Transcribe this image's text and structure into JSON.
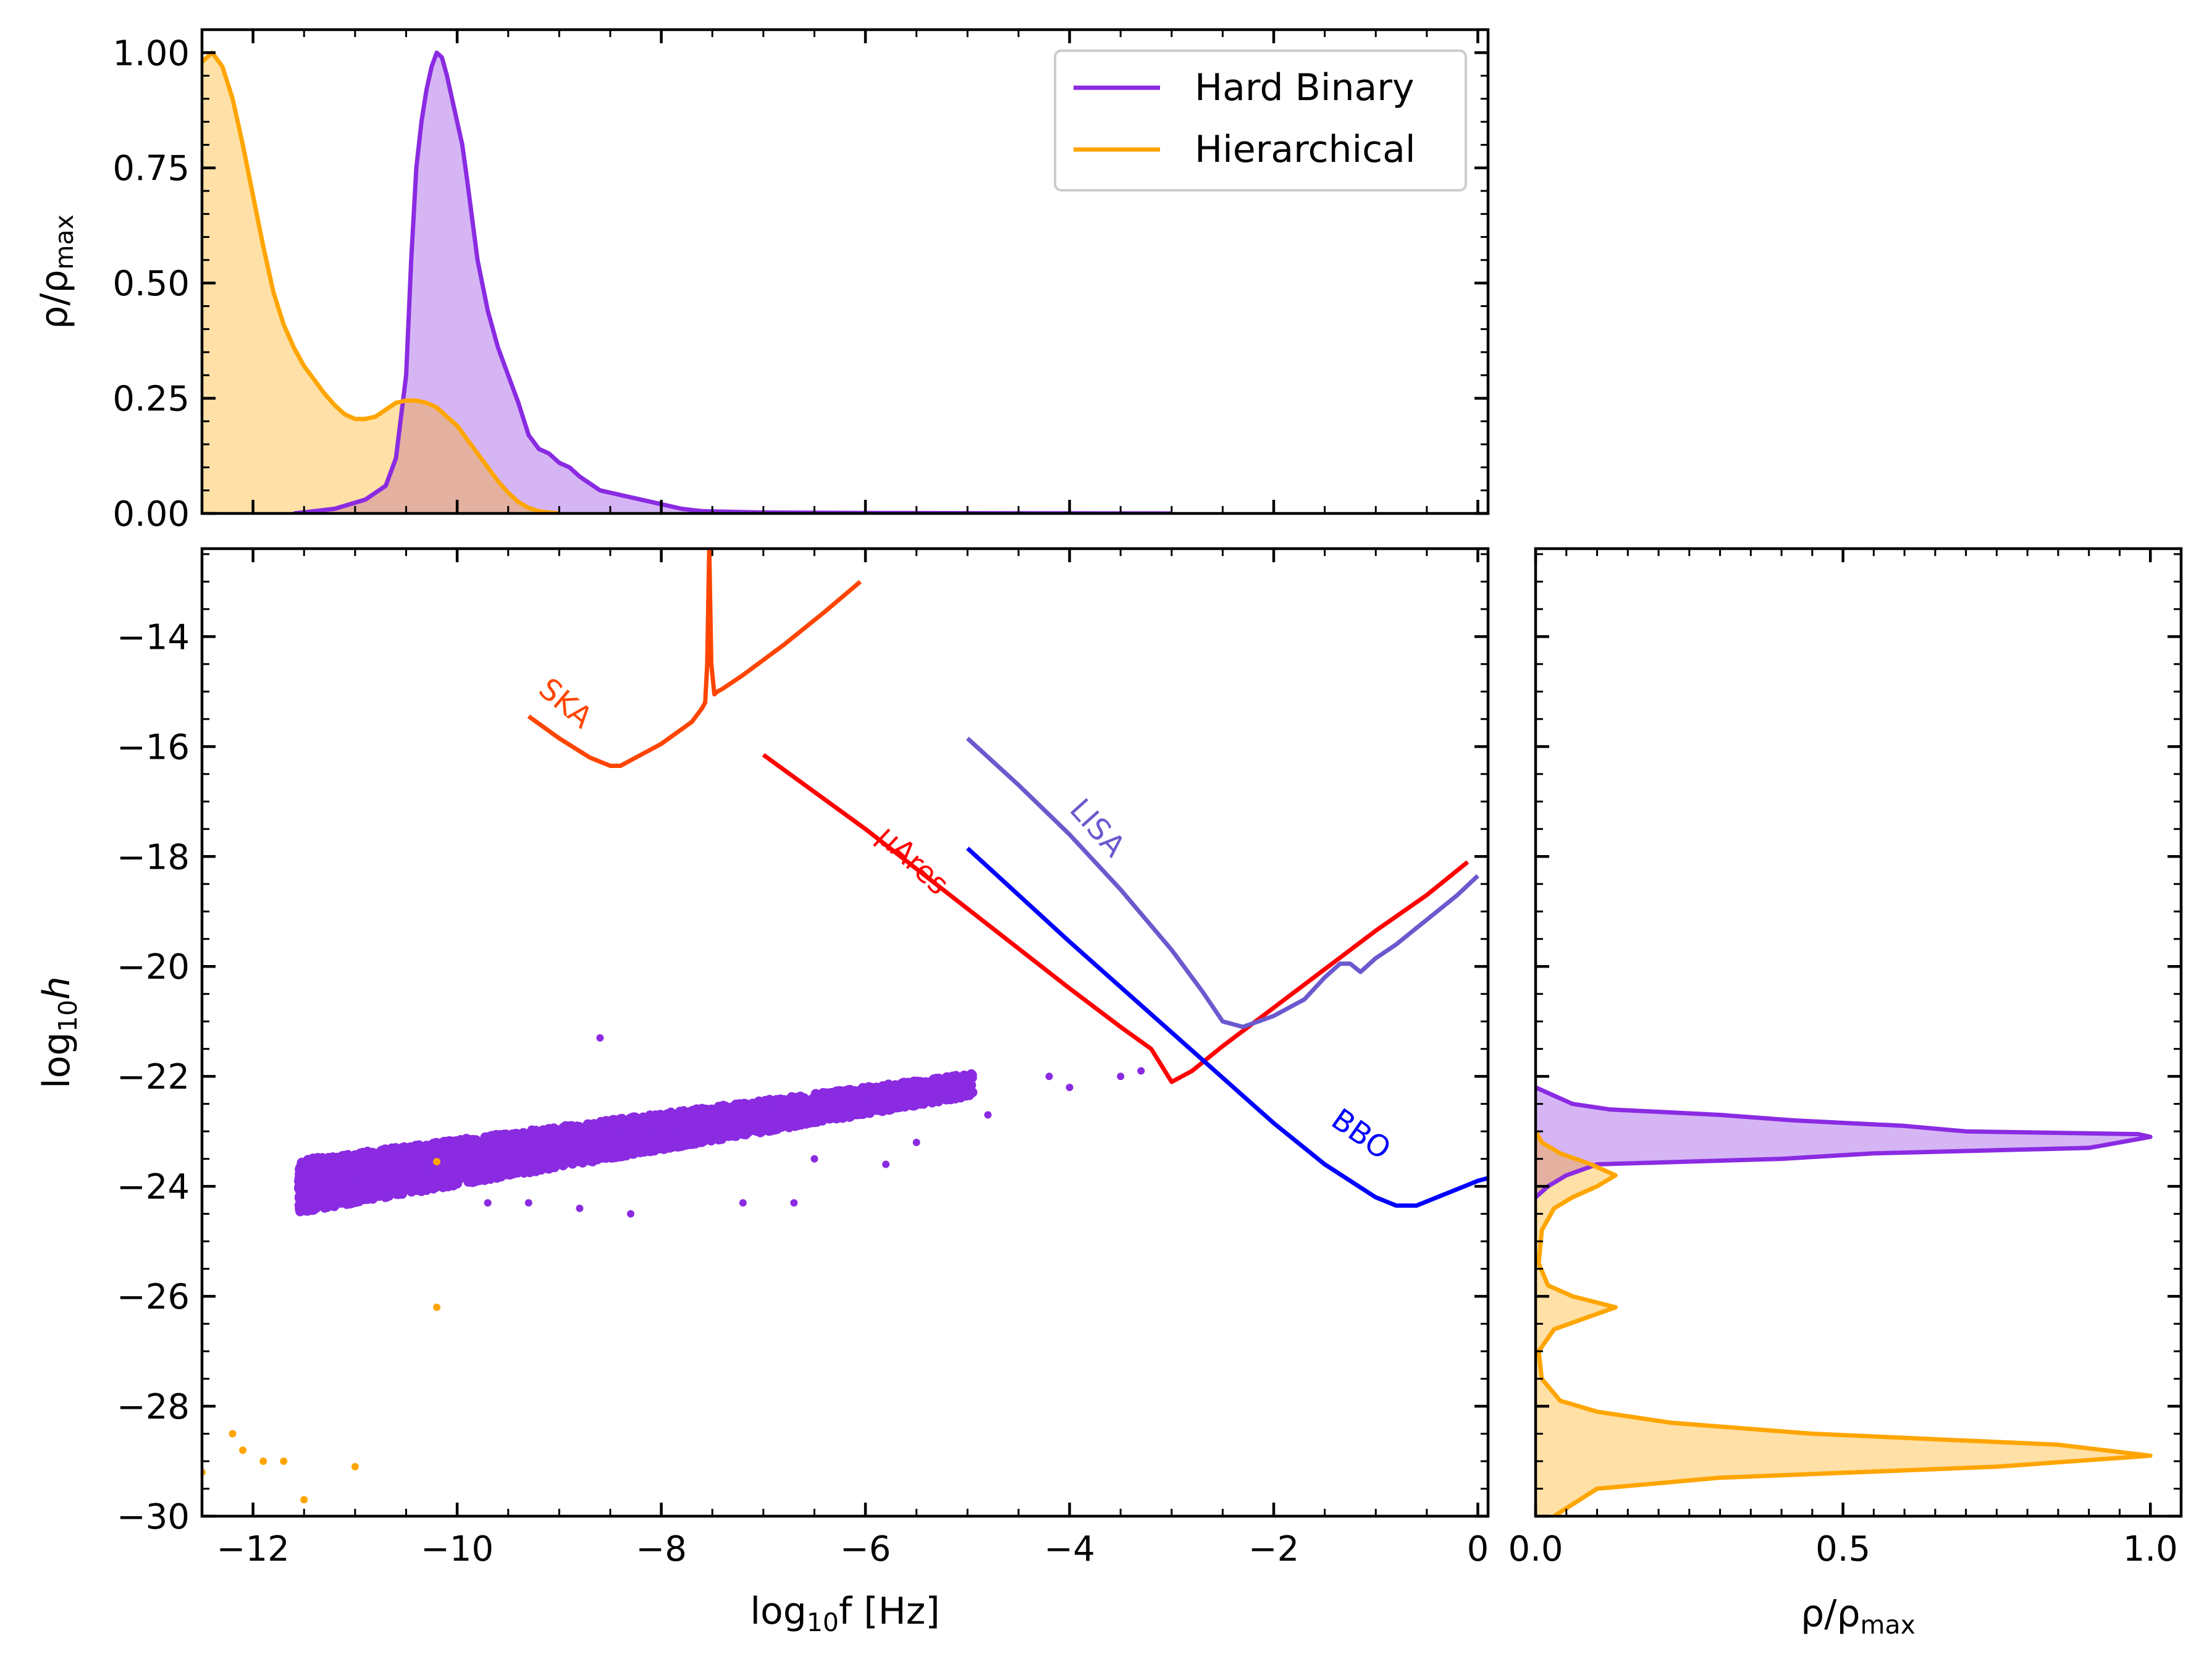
{
  "figure": {
    "top_panel": {
      "ylabel": {
        "main": "ρ/ρ",
        "sub": "max"
      },
      "yticks": [
        "0.00",
        "0.25",
        "0.50",
        "0.75",
        "1.00"
      ]
    },
    "main_panel": {
      "xlabel": {
        "pre": "log",
        "sub": "10",
        "post": "f [Hz]"
      },
      "ylabel": {
        "pre": "log",
        "sub": "10",
        "post": "h"
      },
      "xticks": [
        "−12",
        "−10",
        "−8",
        "−6",
        "−4",
        "−2",
        "0"
      ],
      "yticks": [
        "−14",
        "−16",
        "−18",
        "−20",
        "−22",
        "−24",
        "−26",
        "−28",
        "−30"
      ]
    },
    "right_panel": {
      "xlabel": {
        "main": "ρ/ρ",
        "sub": "max"
      },
      "xticks": [
        "0.0",
        "0.5",
        "1.0"
      ]
    },
    "legend": {
      "position": "upper right of top panel",
      "entries": [
        {
          "label": "Hard Binary",
          "color": "#8a2be2"
        },
        {
          "label": "Hierarchical",
          "color": "#ffa500"
        }
      ]
    },
    "detectors": [
      {
        "name": "SKA",
        "color": "#ff4500"
      },
      {
        "name": "μAres",
        "color": "#ff0000"
      },
      {
        "name": "LISA",
        "color": "#6a5acd"
      },
      {
        "name": "BBO",
        "color": "#0000ff"
      }
    ]
  },
  "chart_data": [
    {
      "type": "area",
      "panel": "top marginal",
      "xlim": [
        -12.5,
        0.1
      ],
      "ylim": [
        0,
        1.05
      ],
      "series": [
        {
          "name": "Hard Binary",
          "color": "#8a2be2",
          "x": [
            -11.6,
            -11.2,
            -10.9,
            -10.7,
            -10.6,
            -10.5,
            -10.45,
            -10.4,
            -10.35,
            -10.3,
            -10.25,
            -10.2,
            -10.15,
            -10.1,
            -10.05,
            -10.0,
            -9.95,
            -9.9,
            -9.8,
            -9.7,
            -9.6,
            -9.5,
            -9.4,
            -9.3,
            -9.2,
            -9.1,
            -9.0,
            -8.9,
            -8.8,
            -8.6,
            -8.4,
            -8.2,
            -8.0,
            -7.8,
            -7.6,
            -7.0,
            -6.0,
            -5.0,
            -3.0
          ],
          "y": [
            0,
            0.01,
            0.03,
            0.06,
            0.12,
            0.3,
            0.55,
            0.75,
            0.85,
            0.92,
            0.97,
            1.0,
            0.99,
            0.95,
            0.9,
            0.85,
            0.8,
            0.72,
            0.55,
            0.44,
            0.36,
            0.3,
            0.24,
            0.17,
            0.14,
            0.13,
            0.11,
            0.1,
            0.08,
            0.05,
            0.04,
            0.03,
            0.02,
            0.01,
            0.005,
            0.002,
            0.001,
            0.0005,
            0
          ]
        },
        {
          "name": "Hierarchical",
          "color": "#ffa500",
          "x": [
            -12.5,
            -12.4,
            -12.3,
            -12.2,
            -12.1,
            -12.0,
            -11.9,
            -11.8,
            -11.7,
            -11.6,
            -11.5,
            -11.4,
            -11.3,
            -11.2,
            -11.1,
            -11.0,
            -10.9,
            -10.8,
            -10.7,
            -10.6,
            -10.5,
            -10.4,
            -10.3,
            -10.2,
            -10.1,
            -10.0,
            -9.9,
            -9.8,
            -9.7,
            -9.6,
            -9.5,
            -9.4,
            -9.3,
            -9.2,
            -9.1,
            -9.0
          ],
          "y": [
            0.98,
            1.0,
            0.97,
            0.9,
            0.8,
            0.69,
            0.58,
            0.48,
            0.41,
            0.36,
            0.32,
            0.29,
            0.26,
            0.235,
            0.215,
            0.205,
            0.205,
            0.21,
            0.225,
            0.24,
            0.245,
            0.245,
            0.24,
            0.23,
            0.21,
            0.19,
            0.16,
            0.13,
            0.1,
            0.07,
            0.045,
            0.025,
            0.012,
            0.005,
            0.002,
            0
          ]
        }
      ]
    },
    {
      "type": "line",
      "panel": "main",
      "xlabel": "log10 f [Hz]",
      "ylabel": "log10 h",
      "xlim": [
        -12.5,
        0.1
      ],
      "ylim": [
        -30,
        -12.4
      ],
      "series": [
        {
          "name": "SKA",
          "color": "#ff4500",
          "x": [
            -9.3,
            -9.0,
            -8.7,
            -8.5,
            -8.4,
            -8.3,
            -8.0,
            -7.7,
            -7.6,
            -7.57,
            -7.55,
            -7.53,
            -7.51,
            -7.48,
            -7.45,
            -7.4,
            -7.2,
            -6.8,
            -6.4,
            -6.05
          ],
          "y": [
            -15.45,
            -15.85,
            -16.2,
            -16.35,
            -16.35,
            -16.25,
            -15.95,
            -15.55,
            -15.3,
            -15.2,
            -14.5,
            -12.4,
            -14.5,
            -15.05,
            -15.0,
            -14.95,
            -14.7,
            -14.15,
            -13.55,
            -13.0
          ]
        },
        {
          "name": "μAres",
          "color": "#ff0000",
          "x": [
            -7.0,
            -6.0,
            -5.0,
            -4.0,
            -3.5,
            -3.2,
            -3.0,
            -2.8,
            -2.5,
            -2.0,
            -1.5,
            -1.0,
            -0.5,
            -0.1
          ],
          "y": [
            -16.15,
            -17.5,
            -18.95,
            -20.4,
            -21.1,
            -21.5,
            -22.1,
            -21.9,
            -21.45,
            -20.75,
            -20.05,
            -19.35,
            -18.7,
            -18.1
          ]
        },
        {
          "name": "LISA",
          "color": "#6a5acd",
          "x": [
            -5.0,
            -4.5,
            -4.0,
            -3.5,
            -3.0,
            -2.7,
            -2.5,
            -2.3,
            -2.0,
            -1.7,
            -1.5,
            -1.35,
            -1.25,
            -1.15,
            -1.0,
            -0.8,
            -0.6,
            -0.4,
            -0.2,
            0.0
          ],
          "y": [
            -15.85,
            -16.7,
            -17.6,
            -18.6,
            -19.7,
            -20.45,
            -21.0,
            -21.1,
            -20.9,
            -20.6,
            -20.2,
            -19.95,
            -19.95,
            -20.1,
            -19.85,
            -19.6,
            -19.3,
            -19.0,
            -18.7,
            -18.35
          ]
        },
        {
          "name": "BBO",
          "color": "#0000ff",
          "x": [
            -5.0,
            -4.0,
            -3.0,
            -2.0,
            -1.5,
            -1.0,
            -0.8,
            -0.6,
            -0.4,
            -0.2,
            0.0,
            0.1
          ],
          "y": [
            -17.85,
            -19.55,
            -21.2,
            -22.85,
            -23.6,
            -24.2,
            -24.35,
            -24.35,
            -24.2,
            -24.05,
            -23.9,
            -23.85
          ]
        }
      ]
    },
    {
      "type": "scatter",
      "panel": "main",
      "series": [
        {
          "name": "Hard Binary",
          "color": "#8a2be2",
          "region": {
            "x": [
              -11.5,
              -5.0
            ],
            "y_center": "-24.0 at x=-11.5 rising to -22.2 at x=-5.0",
            "spread": 0.6
          },
          "points": [
            [
              -8.6,
              -21.3
            ],
            [
              -3.5,
              -22.0
            ],
            [
              -3.3,
              -21.9
            ],
            [
              -4.2,
              -22.0
            ],
            [
              -4.0,
              -22.2
            ],
            [
              -9.7,
              -24.3
            ],
            [
              -9.3,
              -24.3
            ],
            [
              -8.8,
              -24.4
            ],
            [
              -8.3,
              -24.5
            ],
            [
              -7.2,
              -24.3
            ],
            [
              -6.7,
              -24.3
            ],
            [
              -5.8,
              -23.6
            ],
            [
              -6.5,
              -23.5
            ],
            [
              -5.5,
              -23.2
            ],
            [
              -4.8,
              -22.7
            ]
          ]
        },
        {
          "name": "Hierarchical",
          "color": "#ffa500",
          "points": [
            [
              -10.2,
              -23.55
            ],
            [
              -10.2,
              -26.2
            ],
            [
              -12.5,
              -29.2
            ],
            [
              -12.2,
              -28.5
            ],
            [
              -12.1,
              -28.8
            ],
            [
              -11.9,
              -29.0
            ],
            [
              -11.7,
              -29.0
            ],
            [
              -11.5,
              -29.7
            ],
            [
              -11.0,
              -29.1
            ]
          ]
        }
      ]
    },
    {
      "type": "area",
      "panel": "right marginal",
      "xlim": [
        0,
        1.05
      ],
      "ylim": [
        -30,
        -12.4
      ],
      "series": [
        {
          "name": "Hard Binary",
          "color": "#8a2be2",
          "y": [
            -24.2,
            -24.0,
            -23.8,
            -23.6,
            -23.5,
            -23.4,
            -23.3,
            -23.2,
            -23.1,
            -23.05,
            -23.0,
            -22.9,
            -22.8,
            -22.7,
            -22.6,
            -22.5,
            -22.3,
            -22.2
          ],
          "x": [
            0,
            0.02,
            0.05,
            0.1,
            0.4,
            0.55,
            0.9,
            0.95,
            1.0,
            0.98,
            0.7,
            0.6,
            0.42,
            0.3,
            0.12,
            0.06,
            0.02,
            0
          ]
        },
        {
          "name": "Hierarchical",
          "color": "#ffa500",
          "y": [
            -30.0,
            -29.5,
            -29.3,
            -29.1,
            -28.9,
            -28.7,
            -28.5,
            -28.3,
            -28.1,
            -27.9,
            -27.5,
            -27.0,
            -26.6,
            -26.4,
            -26.2,
            -26.0,
            -25.8,
            -25.4,
            -24.8,
            -24.4,
            -24.2,
            -24.0,
            -23.8,
            -23.6,
            -23.4,
            -23.2,
            -23.0
          ],
          "x": [
            0.03,
            0.1,
            0.3,
            0.75,
            1.0,
            0.85,
            0.45,
            0.22,
            0.1,
            0.04,
            0.01,
            0.005,
            0.03,
            0.08,
            0.13,
            0.06,
            0.02,
            0.005,
            0.01,
            0.03,
            0.06,
            0.1,
            0.13,
            0.09,
            0.04,
            0.01,
            0
          ]
        }
      ]
    }
  ]
}
